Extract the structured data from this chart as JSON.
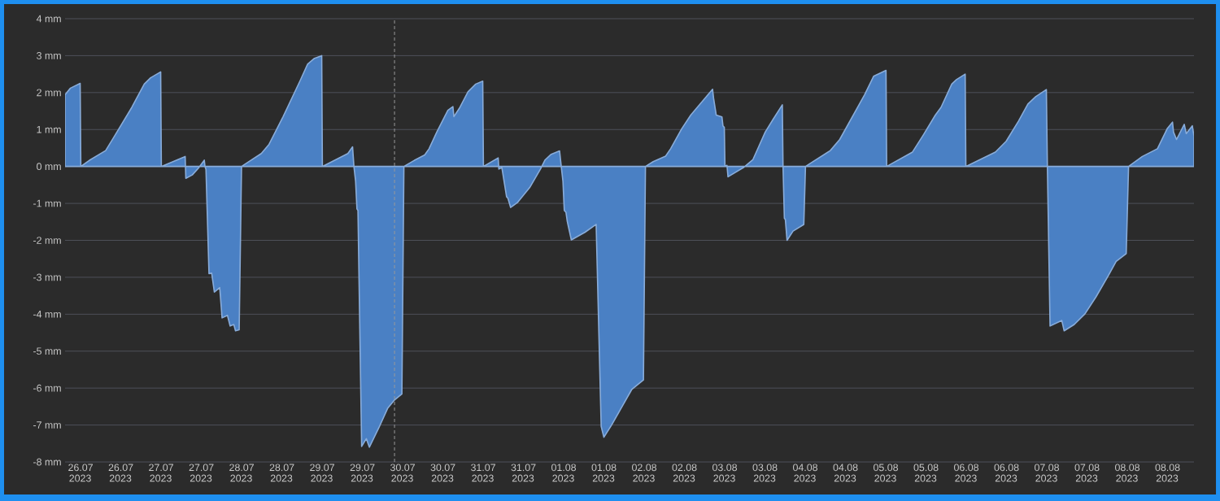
{
  "chart_data": {
    "type": "area",
    "color": "#4a80c4",
    "x": [
      "2023-07-25T19:30",
      "2023-07-25T21:06",
      "2023-07-26T00:00",
      "2023-07-26T00:12",
      "2023-07-26T03:00",
      "2023-07-26T07:36",
      "2023-07-26T09:54",
      "2023-07-26T15:24",
      "2023-07-26T19:06",
      "2023-07-26T21:00",
      "2023-07-27T00:00",
      "2023-07-27T00:12",
      "2023-07-27T07:18",
      "2023-07-27T07:30",
      "2023-07-27T09:24",
      "2023-07-27T11:12",
      "2023-07-27T13:00",
      "2023-07-27T13:12",
      "2023-07-27T13:30",
      "2023-07-27T14:24",
      "2023-07-27T15:12",
      "2023-07-27T16:00",
      "2023-07-27T17:36",
      "2023-07-27T18:18",
      "2023-07-27T19:54",
      "2023-07-27T20:42",
      "2023-07-27T21:48",
      "2023-07-27T22:18",
      "2023-07-27T23:24",
      "2023-07-28T00:06",
      "2023-07-28T06:00",
      "2023-07-28T08:18",
      "2023-07-28T12:30",
      "2023-07-28T17:30",
      "2023-07-28T19:48",
      "2023-07-28T21:42",
      "2023-07-29T00:00",
      "2023-07-29T00:12",
      "2023-07-29T07:48",
      "2023-07-29T09:12",
      "2023-07-29T09:36",
      "2023-07-29T10:06",
      "2023-07-29T10:30",
      "2023-07-29T10:48",
      "2023-07-29T11:54",
      "2023-07-29T13:18",
      "2023-07-29T14:12",
      "2023-07-29T17:00",
      "2023-07-29T19:42",
      "2023-07-29T21:36",
      "2023-07-29T23:54",
      "2023-07-30T00:30",
      "2023-07-30T03:54",
      "2023-07-30T06:42",
      "2023-07-30T08:00",
      "2023-07-30T10:18",
      "2023-07-30T13:36",
      "2023-07-30T15:06",
      "2023-07-30T15:24",
      "2023-07-30T17:12",
      "2023-07-30T19:36",
      "2023-07-30T21:54",
      "2023-07-31T00:00",
      "2023-07-31T00:12",
      "2023-07-31T04:36",
      "2023-07-31T04:48",
      "2023-07-31T05:42",
      "2023-07-31T07:06",
      "2023-07-31T07:30",
      "2023-07-31T08:18",
      "2023-07-31T10:18",
      "2023-07-31T14:00",
      "2023-07-31T17:12",
      "2023-07-31T18:36",
      "2023-07-31T20:24",
      "2023-07-31T22:54",
      "2023-07-31T23:24",
      "2023-07-31T23:54",
      "2023-08-01T00:18",
      "2023-08-01T00:48",
      "2023-08-01T01:12",
      "2023-08-01T02:24",
      "2023-08-01T06:30",
      "2023-08-01T09:48",
      "2023-08-01T11:18",
      "2023-08-01T12:06",
      "2023-08-01T14:24",
      "2023-08-01T17:36",
      "2023-08-01T20:24",
      "2023-08-01T23:54",
      "2023-08-02T00:30",
      "2023-08-02T02:48",
      "2023-08-02T06:30",
      "2023-08-02T08:00",
      "2023-08-02T11:18",
      "2023-08-02T14:00",
      "2023-08-02T20:30",
      "2023-08-02T20:48",
      "2023-08-02T21:36",
      "2023-08-02T23:18",
      "2023-08-02T23:36",
      "2023-08-03T00:00",
      "2023-08-03T00:12",
      "2023-08-03T00:48",
      "2023-08-03T01:06",
      "2023-08-03T05:42",
      "2023-08-03T08:30",
      "2023-08-03T12:12",
      "2023-08-03T14:30",
      "2023-08-03T17:18",
      "2023-08-03T17:30",
      "2023-08-03T17:54",
      "2023-08-03T18:12",
      "2023-08-03T18:42",
      "2023-08-03T20:30",
      "2023-08-03T23:42",
      "2023-08-04T00:12",
      "2023-08-04T07:36",
      "2023-08-04T10:24",
      "2023-08-04T17:48",
      "2023-08-04T20:30",
      "2023-08-05T00:12",
      "2023-08-05T00:24",
      "2023-08-05T08:06",
      "2023-08-05T11:18",
      "2023-08-05T14:54",
      "2023-08-05T16:36",
      "2023-08-05T19:48",
      "2023-08-05T21:12",
      "2023-08-05T23:48",
      "2023-08-06T00:00",
      "2023-08-06T08:48",
      "2023-08-06T12:00",
      "2023-08-06T15:42",
      "2023-08-06T18:30",
      "2023-08-06T20:48",
      "2023-08-07T00:00",
      "2023-08-07T00:18",
      "2023-08-07T01:06",
      "2023-08-07T04:36",
      "2023-08-07T05:18",
      "2023-08-07T08:18",
      "2023-08-07T11:30",
      "2023-08-07T14:48",
      "2023-08-07T18:30",
      "2023-08-07T20:48",
      "2023-08-07T23:48",
      "2023-08-08T00:30",
      "2023-08-08T04:36",
      "2023-08-08T09:06",
      "2023-08-08T12:00",
      "2023-08-08T13:36",
      "2023-08-08T13:54",
      "2023-08-08T14:48",
      "2023-08-08T17:06",
      "2023-08-08T17:42",
      "2023-08-08T19:30",
      "2023-08-08T20:00"
    ],
    "values": [
      1.94,
      2.12,
      2.25,
      0,
      0.18,
      0.43,
      0.77,
      1.6,
      2.23,
      2.4,
      2.56,
      0,
      0.27,
      -0.32,
      -0.23,
      -0.05,
      0.17,
      0,
      -0.08,
      -2.9,
      -2.89,
      -3.4,
      -3.28,
      -4.1,
      -4.03,
      -4.32,
      -4.28,
      -4.45,
      -4.42,
      0,
      0.35,
      0.6,
      1.35,
      2.31,
      2.77,
      2.92,
      3.0,
      0,
      0.35,
      0.53,
      0,
      -0.4,
      -1.15,
      -1.19,
      -7.58,
      -7.37,
      -7.6,
      -7.08,
      -6.54,
      -6.33,
      -6.16,
      0,
      0.18,
      0.31,
      0.48,
      0.93,
      1.52,
      1.62,
      1.35,
      1.6,
      2.02,
      2.23,
      2.31,
      0,
      0.23,
      -0.07,
      -0.03,
      -0.82,
      -0.86,
      -1.11,
      -0.98,
      -0.57,
      -0.07,
      0.18,
      0.33,
      0.42,
      0,
      -0.4,
      -1.19,
      -1.24,
      -1.49,
      -1.99,
      -1.78,
      -1.57,
      -7.04,
      -7.33,
      -7.0,
      -6.49,
      -6.04,
      -5.78,
      0,
      0.13,
      0.28,
      0.48,
      1.02,
      1.39,
      2.09,
      1.85,
      1.39,
      1.34,
      1.1,
      1.06,
      0,
      0.03,
      -0.28,
      -0.03,
      0.18,
      0.93,
      1.27,
      1.67,
      0,
      -1.4,
      -1.44,
      -2.0,
      -1.75,
      -1.57,
      0,
      0.43,
      0.73,
      1.94,
      2.44,
      2.6,
      0,
      0.39,
      0.85,
      1.39,
      1.6,
      2.23,
      2.35,
      2.5,
      0,
      0.39,
      0.68,
      1.23,
      1.69,
      1.89,
      2.08,
      0,
      -4.32,
      -4.17,
      -4.45,
      -4.28,
      -3.99,
      -3.53,
      -2.95,
      -2.57,
      -2.36,
      0,
      0.27,
      0.48,
      1.02,
      1.2,
      0.93,
      0.73,
      1.14,
      0.89,
      1.1,
      0.82
    ],
    "xlim": [
      "2023-07-25T19:30",
      "2023-08-08T20:00"
    ],
    "xticks": [
      {
        "value": "2023-07-26T00:00",
        "label": "26.07 2023"
      },
      {
        "value": "2023-07-26T12:00",
        "label": "26.07 2023"
      },
      {
        "value": "2023-07-27T00:00",
        "label": "27.07 2023"
      },
      {
        "value": "2023-07-27T12:00",
        "label": "27.07 2023"
      },
      {
        "value": "2023-07-28T00:00",
        "label": "28.07 2023"
      },
      {
        "value": "2023-07-28T12:00",
        "label": "28.07 2023"
      },
      {
        "value": "2023-07-29T00:00",
        "label": "29.07 2023"
      },
      {
        "value": "2023-07-29T12:00",
        "label": "29.07 2023"
      },
      {
        "value": "2023-07-30T00:00",
        "label": "30.07 2023"
      },
      {
        "value": "2023-07-30T12:00",
        "label": "30.07 2023"
      },
      {
        "value": "2023-07-31T00:00",
        "label": "31.07 2023"
      },
      {
        "value": "2023-07-31T12:00",
        "label": "31.07 2023"
      },
      {
        "value": "2023-08-01T00:00",
        "label": "01.08 2023"
      },
      {
        "value": "2023-08-01T12:00",
        "label": "01.08 2023"
      },
      {
        "value": "2023-08-02T00:00",
        "label": "02.08 2023"
      },
      {
        "value": "2023-08-02T12:00",
        "label": "02.08 2023"
      },
      {
        "value": "2023-08-03T00:00",
        "label": "03.08 2023"
      },
      {
        "value": "2023-08-03T12:00",
        "label": "03.08 2023"
      },
      {
        "value": "2023-08-04T00:00",
        "label": "04.08 2023"
      },
      {
        "value": "2023-08-04T12:00",
        "label": "04.08 2023"
      },
      {
        "value": "2023-08-05T00:00",
        "label": "05.08 2023"
      },
      {
        "value": "2023-08-05T12:00",
        "label": "05.08 2023"
      },
      {
        "value": "2023-08-06T00:00",
        "label": "06.08 2023"
      },
      {
        "value": "2023-08-06T12:00",
        "label": "06.08 2023"
      },
      {
        "value": "2023-08-07T00:00",
        "label": "07.08 2023"
      },
      {
        "value": "2023-08-07T12:00",
        "label": "07.08 2023"
      },
      {
        "value": "2023-08-08T00:00",
        "label": "08.08 2023"
      },
      {
        "value": "2023-08-08T12:00",
        "label": "08.08 2023"
      }
    ],
    "ylim": [
      -8,
      4
    ],
    "yticks": [
      {
        "value": -8,
        "label": "-8 mm"
      },
      {
        "value": -7,
        "label": "-7 mm"
      },
      {
        "value": -6,
        "label": "-6 mm"
      },
      {
        "value": -5,
        "label": "-5 mm"
      },
      {
        "value": -4,
        "label": "-4 mm"
      },
      {
        "value": -3,
        "label": "-3 mm"
      },
      {
        "value": -2,
        "label": "-2 mm"
      },
      {
        "value": -1,
        "label": "-1 mm"
      },
      {
        "value": 0,
        "label": "0 mm"
      },
      {
        "value": 1,
        "label": "1 mm"
      },
      {
        "value": 2,
        "label": "2 mm"
      },
      {
        "value": 3,
        "label": "3 mm"
      },
      {
        "value": 4,
        "label": "4 mm"
      }
    ],
    "grid": "y",
    "ref_lines": [
      {
        "axis": "x",
        "value": "2023-07-29T21:42",
        "color": "#9a9a9a",
        "line_style": "dashed"
      }
    ]
  }
}
